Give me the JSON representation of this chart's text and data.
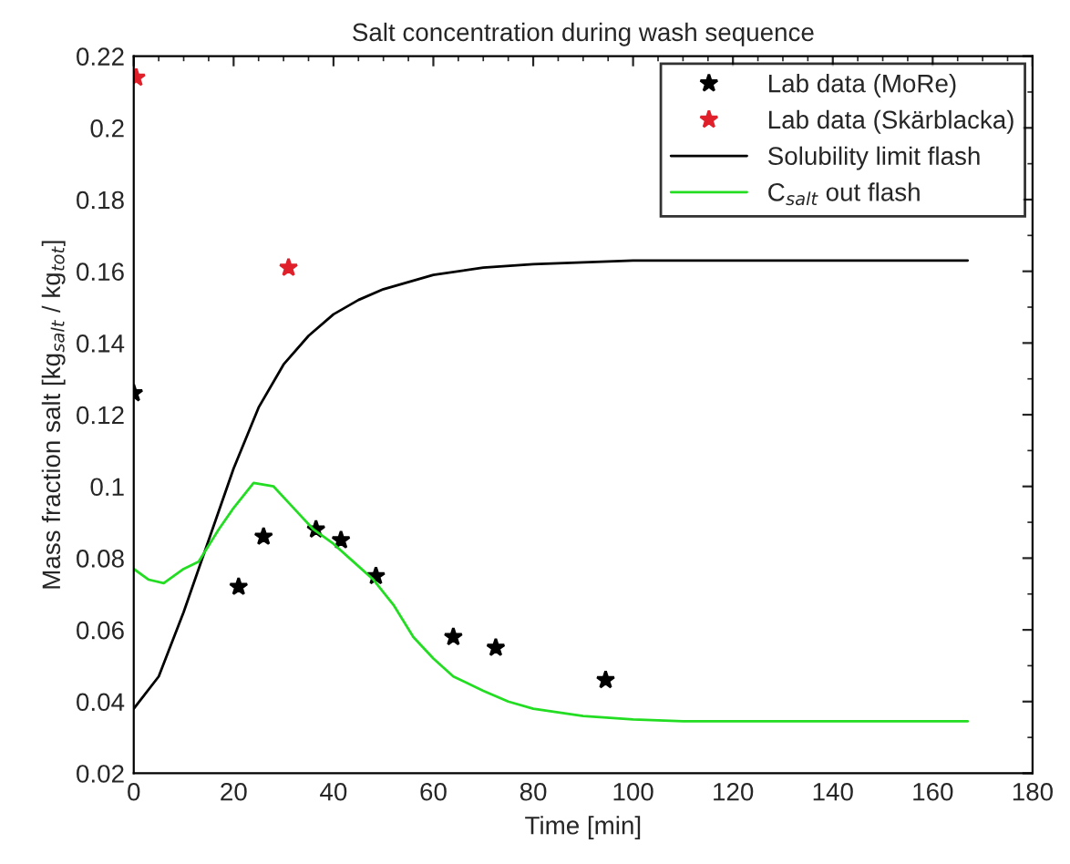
{
  "chart_data": {
    "type": "line",
    "title": "Salt concentration during wash sequence",
    "xlabel": "Time [min]",
    "ylabel": "Mass fraction salt [kg$_{salt}$ / kg$_{tot}$]",
    "xlim": [
      0,
      180
    ],
    "xticks": [
      0,
      20,
      40,
      60,
      80,
      100,
      120,
      140,
      160,
      180
    ],
    "ylim": [
      0.02,
      0.22
    ],
    "yticks": [
      0.02,
      0.04,
      0.06,
      0.08,
      0.1,
      0.12,
      0.14,
      0.16,
      0.18,
      0.2,
      0.22
    ],
    "grid": false,
    "legend": "top right",
    "series": [
      {
        "name": "Lab data (MoRe)",
        "type": "scatter",
        "marker": "star",
        "color": "#000000",
        "x": [
          0,
          21,
          26,
          36.5,
          41.5,
          48.5,
          64,
          72.5,
          94.5
        ],
        "values": [
          0.126,
          0.072,
          0.086,
          0.088,
          0.085,
          0.075,
          0.058,
          0.055,
          0.046
        ]
      },
      {
        "name": "Lab data (Skärblacka)",
        "type": "scatter",
        "marker": "star",
        "color": "#e0202a",
        "x": [
          0.5,
          31
        ],
        "values": [
          0.214,
          0.161
        ]
      },
      {
        "name": "Solubility limit flash",
        "line_style": "solid",
        "color": "#000000",
        "x": [
          0,
          5,
          10,
          15,
          20,
          25,
          30,
          35,
          40,
          45,
          50,
          60,
          70,
          80,
          100,
          167
        ],
        "values": [
          0.038,
          0.047,
          0.065,
          0.085,
          0.105,
          0.122,
          0.134,
          0.142,
          0.148,
          0.152,
          0.155,
          0.159,
          0.161,
          0.162,
          0.163,
          0.163
        ]
      },
      {
        "name": "C$_{salt}$ out flash",
        "line_style": "solid",
        "color": "#22dd22",
        "x": [
          0,
          3,
          6,
          10,
          13,
          17,
          20,
          24,
          28,
          32,
          36,
          40,
          44,
          48,
          52,
          56,
          60,
          64,
          70,
          75,
          80,
          90,
          100,
          110,
          167
        ],
        "values": [
          0.077,
          0.074,
          0.073,
          0.077,
          0.079,
          0.088,
          0.094,
          0.101,
          0.1,
          0.094,
          0.088,
          0.084,
          0.079,
          0.074,
          0.067,
          0.058,
          0.052,
          0.047,
          0.043,
          0.04,
          0.038,
          0.036,
          0.035,
          0.0345,
          0.0345
        ]
      }
    ]
  }
}
